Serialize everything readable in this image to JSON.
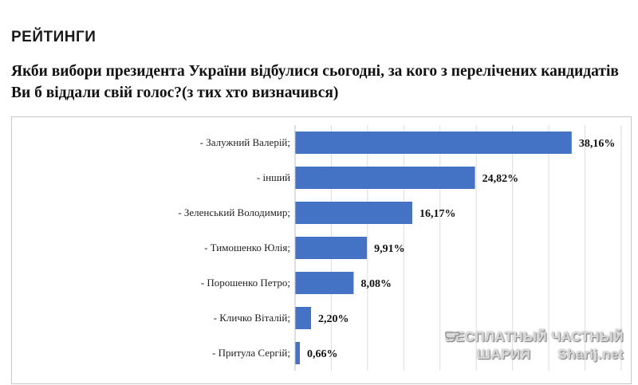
{
  "header": {
    "heading": "РЕЙТИНГИ",
    "question": "Якби вибори президента України відбулися сьогодні, за кого з перелічених кандидатів Ви б віддали свій голос?(з тих хто визначився)"
  },
  "chart_data": {
    "type": "bar",
    "orientation": "horizontal",
    "categories": [
      "- Залужний Валерій;",
      "- інший",
      "- Зеленський Володимир;",
      "- Тимошенко Юлія;",
      "- Порошенко Петро;",
      "- Кличко Віталій;",
      "- Притула Сергій;"
    ],
    "values": [
      38.16,
      24.82,
      16.17,
      9.91,
      8.08,
      2.2,
      0.66
    ],
    "value_labels": [
      "38,16%",
      "24,82%",
      "16,17%",
      "9,91%",
      "8,08%",
      "2,20%",
      "0,66%"
    ],
    "xlim": [
      0,
      45
    ],
    "grid": "vertical",
    "bar_color": "#4472c4"
  },
  "watermark": {
    "line1": "БЕСПЛАТНЫЙ ЧАСТНЫЙ",
    "line2_left": "ШАРИЯ",
    "line2_right": "Sharij.net",
    "icon": "pointing-hand-icon"
  }
}
